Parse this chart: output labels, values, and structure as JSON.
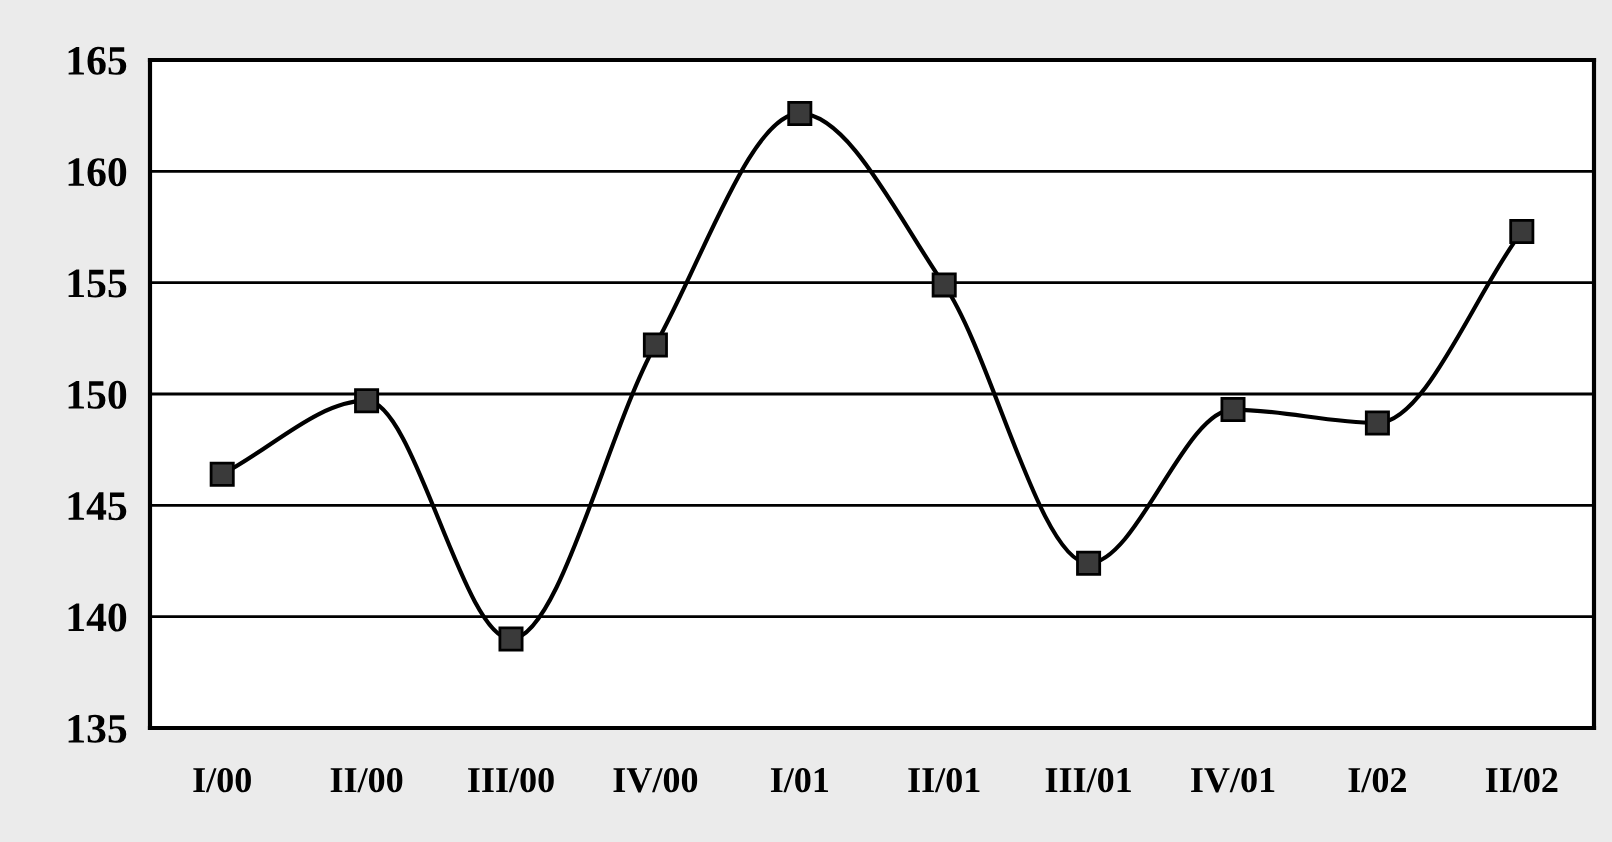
{
  "chart_data": {
    "type": "line",
    "categories": [
      "I/00",
      "II/00",
      "III/00",
      "IV/00",
      "I/01",
      "II/01",
      "III/01",
      "IV/01",
      "I/02",
      "II/02"
    ],
    "series": [
      {
        "color": "#000000",
        "values": [
          146.4,
          149.7,
          139.0,
          152.2,
          162.6,
          154.9,
          142.4,
          149.3,
          148.7,
          157.3
        ]
      }
    ],
    "ylim": [
      135,
      165
    ],
    "yticks": [
      135,
      140,
      145,
      150,
      155,
      160,
      165
    ],
    "grid": "y",
    "marker": "square",
    "line_style": "solid",
    "legend": false
  }
}
